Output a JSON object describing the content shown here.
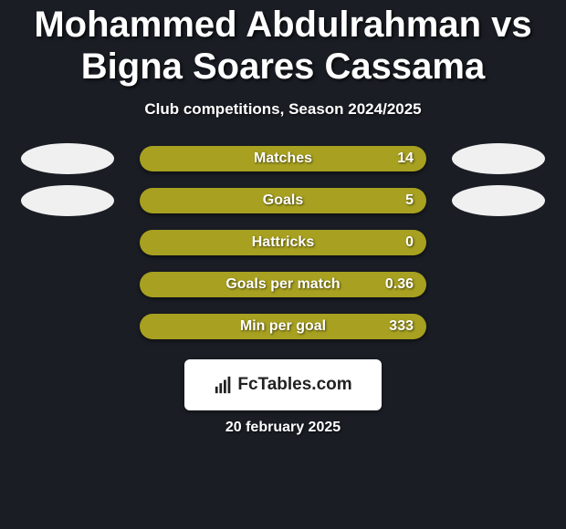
{
  "colors": {
    "background": "#1a1d24",
    "title_color": "#ffffff",
    "subtitle_color": "#ffffff",
    "pill_bg": "#a7a020",
    "pill_text": "#ffffff",
    "value_text": "#ffffff",
    "photo_bg": "#f0f0f0",
    "logo_bg": "#ffffff",
    "logo_text": "#212121",
    "date_color": "#ffffff"
  },
  "typography": {
    "title_fontsize": 40,
    "subtitle_fontsize": 17,
    "pill_label_fontsize": 16,
    "pill_value_fontsize": 16,
    "date_fontsize": 16
  },
  "title": "Mohammed Abdulrahman vs Bigna Soares Cassama",
  "subtitle": "Club competitions, Season 2024/2025",
  "stats": [
    {
      "label": "Matches",
      "value": "14",
      "left_photo": true,
      "right_photo": true
    },
    {
      "label": "Goals",
      "value": "5",
      "left_photo": true,
      "right_photo": true
    },
    {
      "label": "Hattricks",
      "value": "0",
      "left_photo": false,
      "right_photo": false
    },
    {
      "label": "Goals per match",
      "value": "0.36",
      "left_photo": false,
      "right_photo": false
    },
    {
      "label": "Min per goal",
      "value": "333",
      "left_photo": false,
      "right_photo": false
    }
  ],
  "logo_text": "FcTables.com",
  "date": "20 february 2025"
}
